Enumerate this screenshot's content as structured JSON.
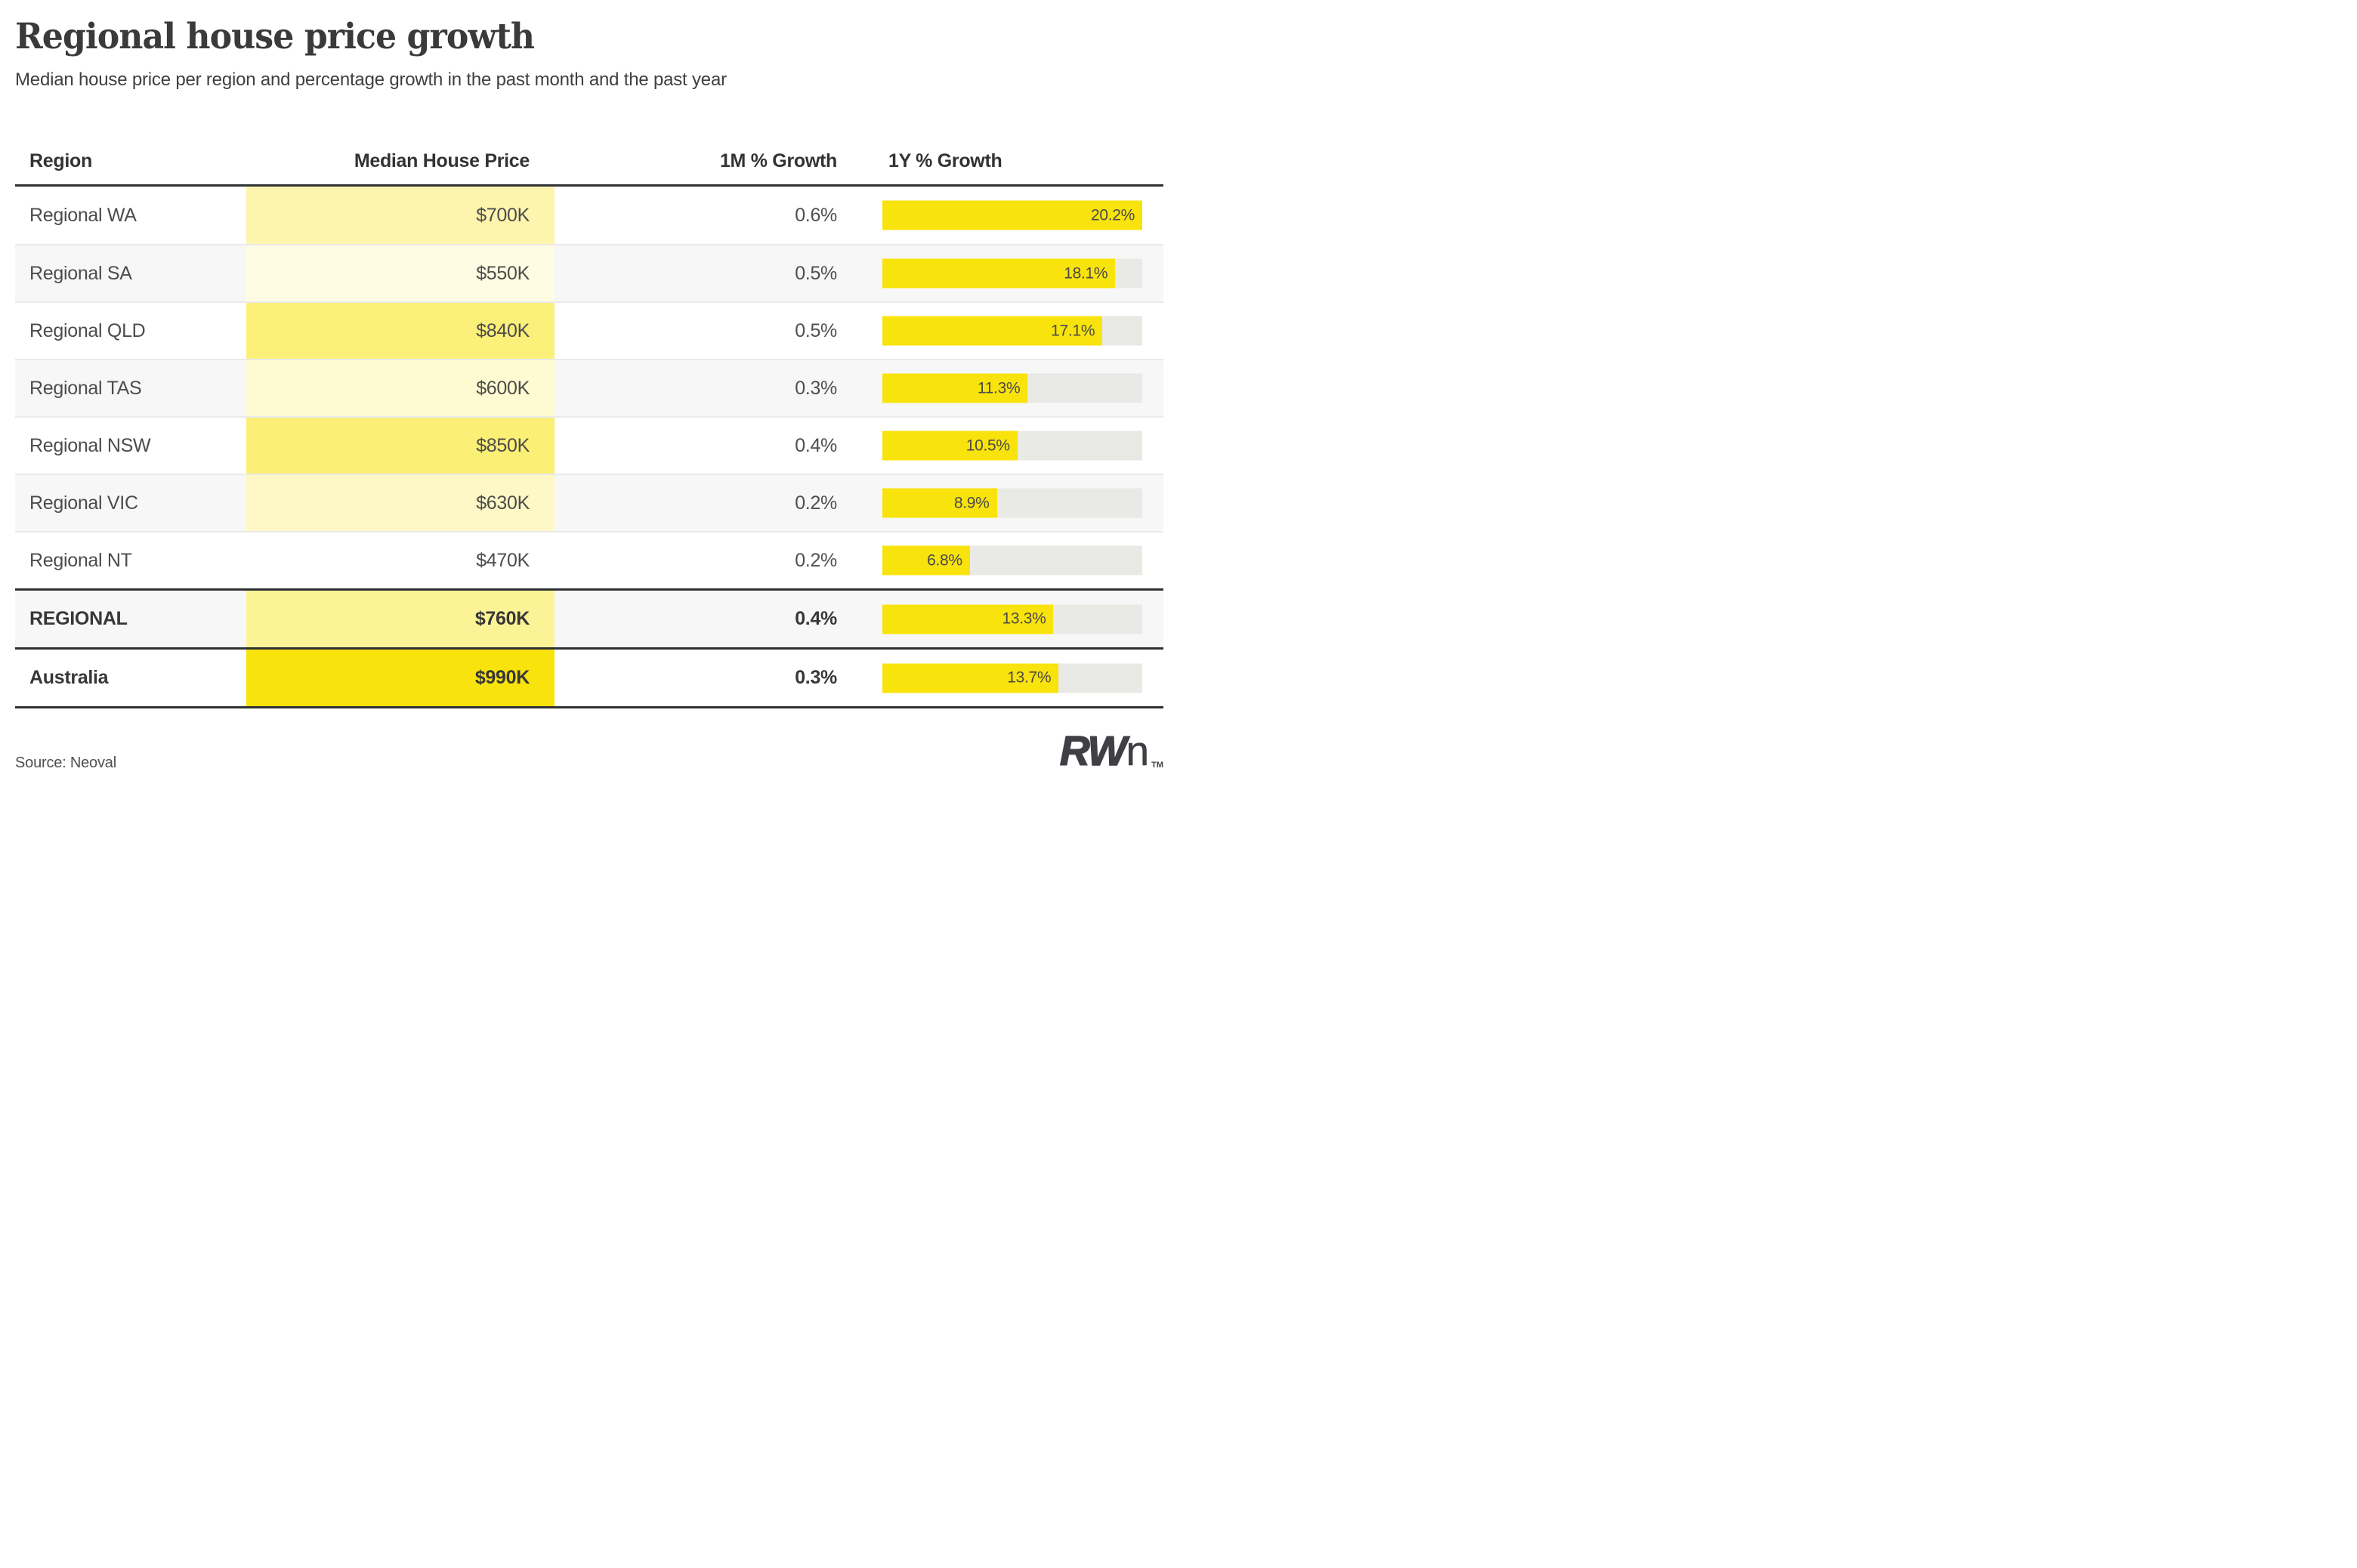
{
  "header": {
    "title": "Regional house price growth",
    "subtitle": "Median house price per region and percentage growth in the past month and the past year"
  },
  "chart_data": {
    "type": "table",
    "title": "Regional house price growth",
    "columns": [
      "Region",
      "Median House Price",
      "1M % Growth",
      "1Y % Growth"
    ],
    "bar_axis_max": 20.2,
    "price_heat_range_k": [
      470,
      990
    ],
    "rows": [
      {
        "region": "Regional WA",
        "median_price": "$700K",
        "price_value_k": 700,
        "growth_1m": "0.6%",
        "growth_1y": 20.2,
        "growth_1y_label": "20.2%",
        "price_cell_color": "#FDF5AD",
        "emphasis": false
      },
      {
        "region": "Regional SA",
        "median_price": "$550K",
        "price_value_k": 550,
        "growth_1m": "0.5%",
        "growth_1y": 18.1,
        "growth_1y_label": "18.1%",
        "price_cell_color": "#FEFCE2",
        "emphasis": false
      },
      {
        "region": "Regional QLD",
        "median_price": "$840K",
        "price_value_k": 840,
        "growth_1m": "0.5%",
        "growth_1y": 17.1,
        "growth_1y_label": "17.1%",
        "price_cell_color": "#FBF07A",
        "emphasis": false
      },
      {
        "region": "Regional TAS",
        "median_price": "$600K",
        "price_value_k": 600,
        "growth_1m": "0.3%",
        "growth_1y": 11.3,
        "growth_1y_label": "11.3%",
        "price_cell_color": "#FEFAD1",
        "emphasis": false
      },
      {
        "region": "Regional NSW",
        "median_price": "$850K",
        "price_value_k": 850,
        "growth_1m": "0.4%",
        "growth_1y": 10.5,
        "growth_1y_label": "10.5%",
        "price_cell_color": "#FBEF75",
        "emphasis": false
      },
      {
        "region": "Regional VIC",
        "median_price": "$630K",
        "price_value_k": 630,
        "growth_1m": "0.2%",
        "growth_1y": 8.9,
        "growth_1y_label": "8.9%",
        "price_cell_color": "#FDF8C5",
        "emphasis": false
      },
      {
        "region": "Regional NT",
        "median_price": "$470K",
        "price_value_k": 470,
        "growth_1m": "0.2%",
        "growth_1y": 6.8,
        "growth_1y_label": "6.8%",
        "price_cell_color": "#FFFFFF",
        "emphasis": false
      },
      {
        "region": "REGIONAL",
        "median_price": "$760K",
        "price_value_k": 760,
        "growth_1m": "0.4%",
        "growth_1y": 13.3,
        "growth_1y_label": "13.3%",
        "price_cell_color": "#FCF397",
        "emphasis": true
      },
      {
        "region": "Australia",
        "median_price": "$990K",
        "price_value_k": 990,
        "growth_1m": "0.3%",
        "growth_1y": 13.7,
        "growth_1y_label": "13.7%",
        "price_cell_color": "#F8E30C",
        "emphasis": true
      }
    ],
    "legend_position": "none",
    "grid": false
  },
  "colors": {
    "brand_yellow": "#F8E30C",
    "bar_track": "#E9E9E6",
    "dark_rule": "#2F3134",
    "alt_row_bg": "#F7F7F7",
    "light_rule": "#EAEAEA",
    "text_dark": "#333333",
    "text_body": "#4C4C4C"
  },
  "footer": {
    "source": "Source: Neoval",
    "logo": {
      "bold_part": "RW",
      "light_part": "n",
      "trademark": "TM"
    }
  }
}
